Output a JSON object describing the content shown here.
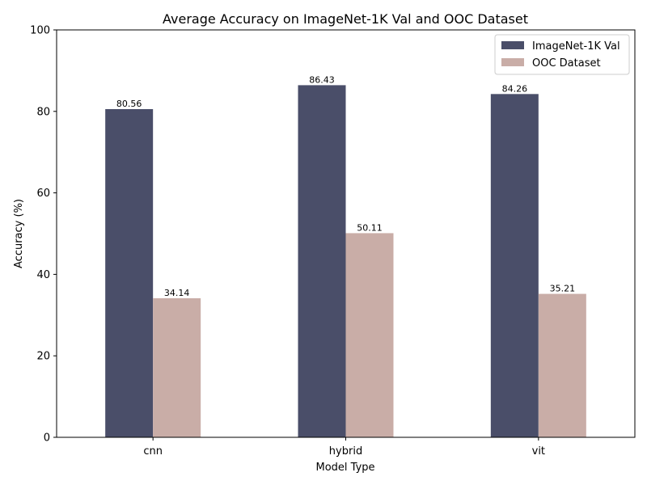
{
  "chart_data": {
    "type": "bar",
    "title": "Average Accuracy on ImageNet-1K Val and OOC Dataset",
    "xlabel": "Model Type",
    "ylabel": "Accuracy (%)",
    "ylim": [
      0,
      100
    ],
    "yticks": [
      0,
      20,
      40,
      60,
      80,
      100
    ],
    "grid": false,
    "legend_position": "top-right",
    "categories": [
      "cnn",
      "hybrid",
      "vit"
    ],
    "series": [
      {
        "name": "ImageNet-1K Val",
        "color": "#4a4e69",
        "values": [
          80.56,
          86.43,
          84.26
        ]
      },
      {
        "name": "OOC Dataset",
        "color": "#c9ada7",
        "values": [
          34.14,
          50.11,
          35.21
        ]
      }
    ]
  }
}
